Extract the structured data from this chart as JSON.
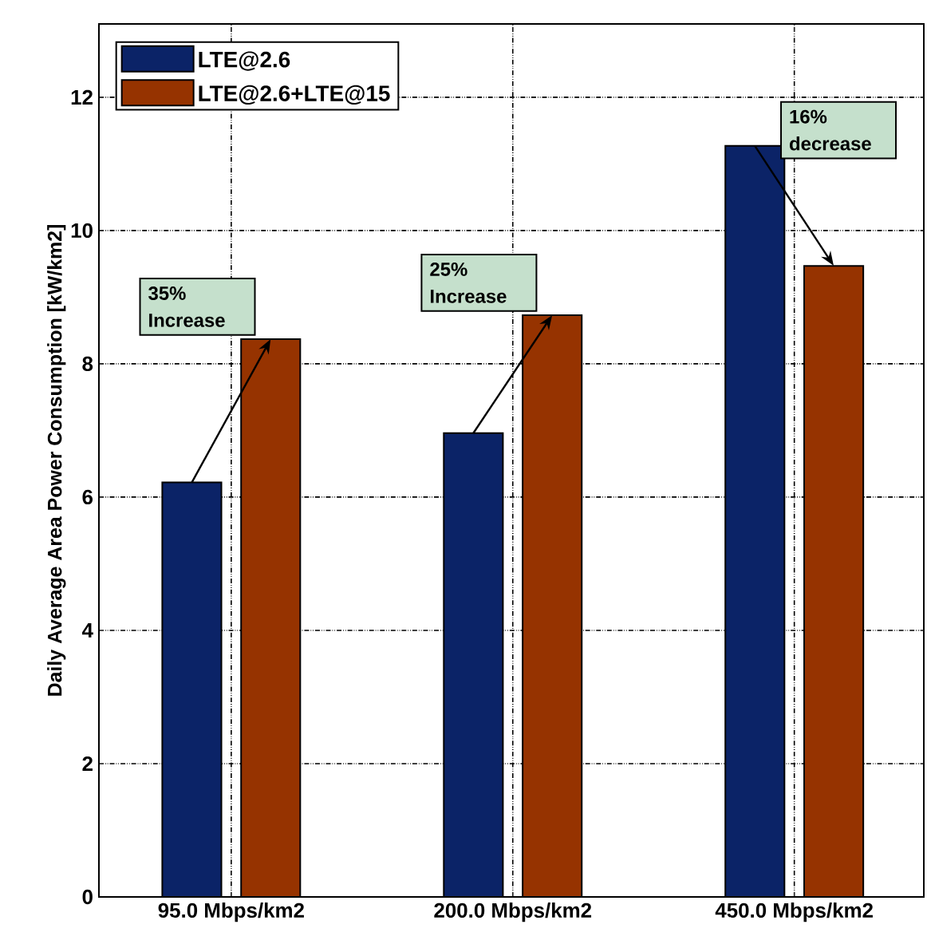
{
  "chart_data": {
    "type": "bar",
    "ylabel": "Daily Average Area Power Consumption  [kW/km2]",
    "categories": [
      "95.0 Mbps/km2",
      "200.0 Mbps/km2",
      "450.0 Mbps/km2"
    ],
    "series": [
      {
        "name": "LTE@2.6",
        "color": "#0b2367",
        "values": [
          6.22,
          6.96,
          11.27
        ]
      },
      {
        "name": "LTE@2.6+LTE@15",
        "color": "#963300",
        "values": [
          8.37,
          8.73,
          9.47
        ]
      }
    ],
    "ylim": [
      0,
      13.1
    ],
    "yticks": [
      0,
      2,
      4,
      6,
      8,
      10,
      12
    ],
    "grid": true,
    "legend": "top left",
    "annotations": [
      "35% Increase",
      "25% Increase",
      "16% decrease"
    ]
  }
}
